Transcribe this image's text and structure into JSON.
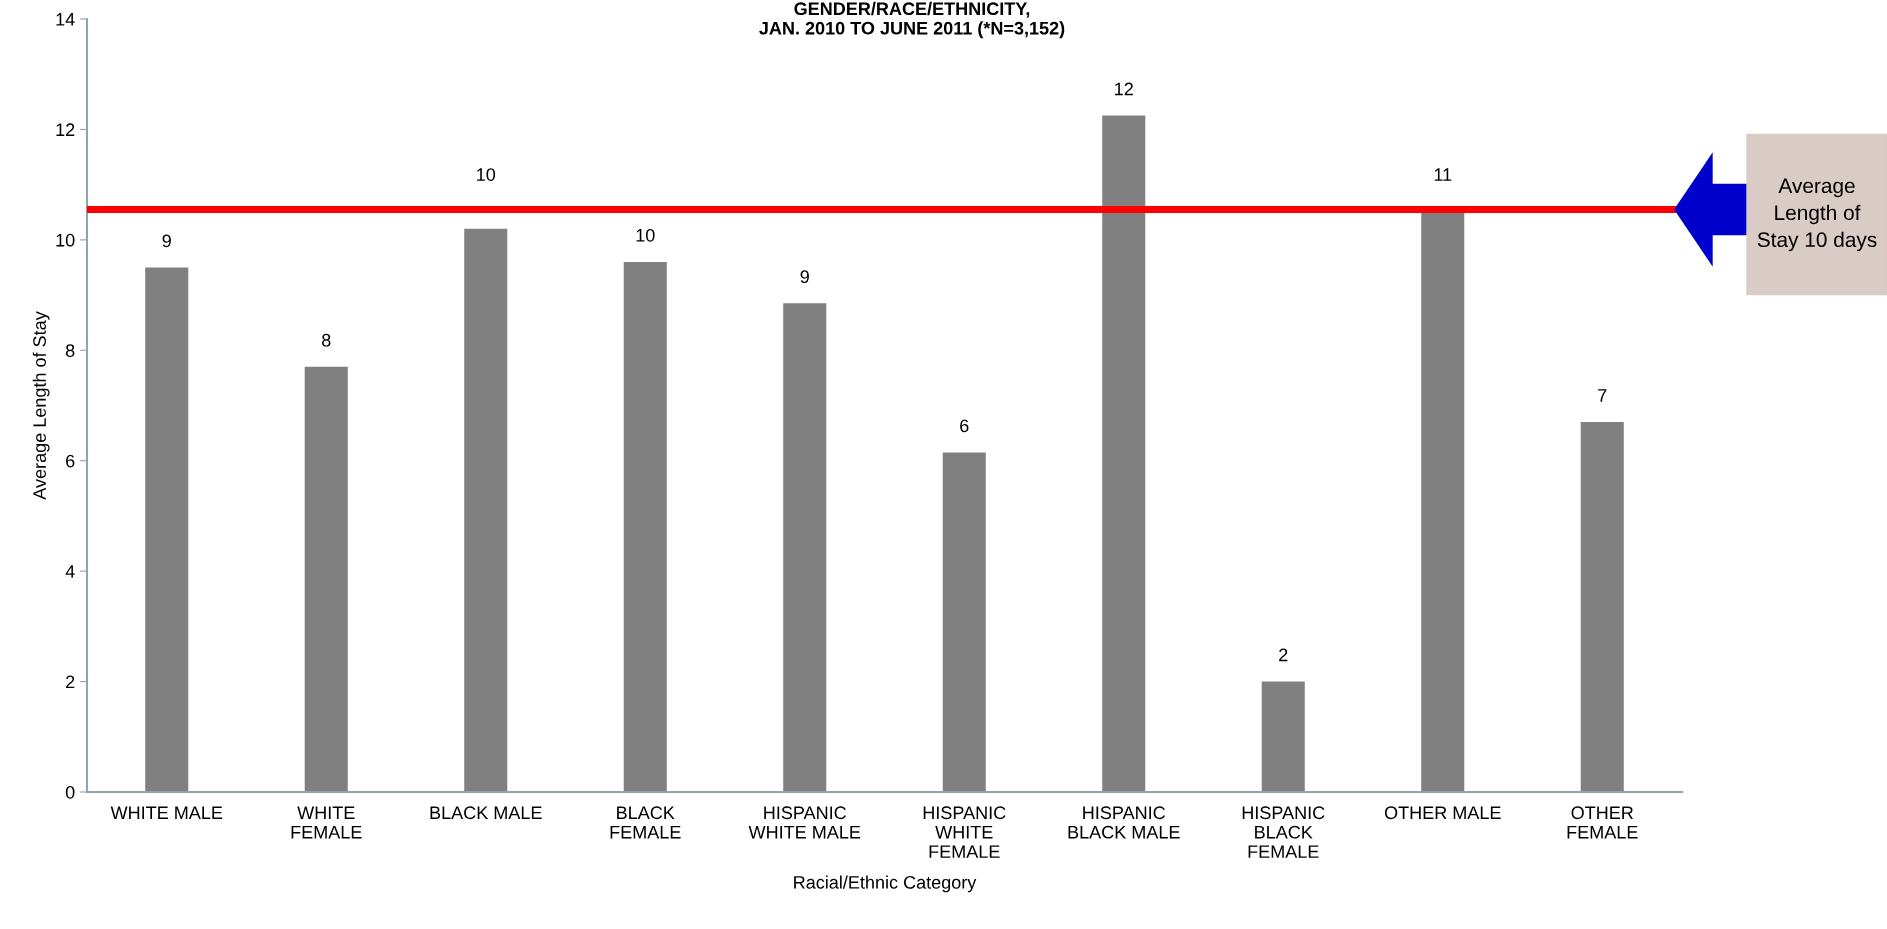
{
  "chart_data": {
    "type": "bar",
    "title": "GENDER/RACE/ETHNICITY,\nJAN. 2010 TO JUNE 2011 (*N=3,152)",
    "xlabel": "Racial/Ethnic Category",
    "ylabel": "Average Length of Stay",
    "categories": [
      "WHITE MALE",
      "WHITE FEMALE",
      "BLACK MALE",
      "BLACK FEMALE",
      "HISPANIC WHITE MALE",
      "HISPANIC WHITE FEMALE",
      "HISPANIC BLACK MALE",
      "HISPANIC BLACK FEMALE",
      "OTHER MALE",
      "OTHER FEMALE"
    ],
    "values": [
      9.5,
      7.7,
      10.2,
      9.6,
      8.85,
      6.15,
      12.25,
      2.0,
      10.55,
      6.7
    ],
    "value_labels": [
      "9",
      "8",
      "10",
      "10",
      "9",
      "6",
      "12",
      "2",
      "11",
      "7"
    ],
    "color": "#808080",
    "ylim": [
      0,
      14
    ],
    "yticks": [
      0,
      2,
      4,
      6,
      8,
      10,
      12,
      14
    ],
    "ref_lines": [
      {
        "axis": "y",
        "value": 10.55,
        "label": "Average Length of Stay 10 days",
        "color": "#ff0000"
      }
    ],
    "grid": false
  }
}
